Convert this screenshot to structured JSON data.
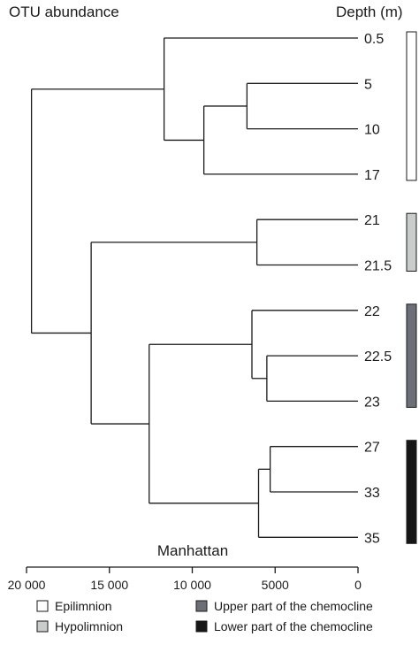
{
  "title": "OTU abundance",
  "depth_header": "Depth (m)",
  "xlabel": "Manhattan",
  "x_axis": {
    "ticks": [
      20000,
      15000,
      10000,
      5000,
      0
    ],
    "tick_labels": [
      "20 000",
      "15 000",
      "10 000",
      "5000",
      "0"
    ],
    "range": [
      20000,
      0
    ],
    "direction": "reversed"
  },
  "leaves": [
    "0.5",
    "5",
    "10",
    "17",
    "21",
    "21.5",
    "22",
    "22.5",
    "23",
    "27",
    "33",
    "35"
  ],
  "tree": {
    "h": 19700,
    "children": [
      {
        "h": 11700,
        "children": [
          {
            "leaf": 0
          },
          {
            "h": 9300,
            "children": [
              {
                "h": 6700,
                "children": [
                  {
                    "leaf": 1
                  },
                  {
                    "leaf": 2
                  }
                ]
              },
              {
                "leaf": 3
              }
            ]
          }
        ]
      },
      {
        "h": 16100,
        "children": [
          {
            "h": 6100,
            "children": [
              {
                "leaf": 4
              },
              {
                "leaf": 5
              }
            ]
          },
          {
            "h": 12600,
            "children": [
              {
                "h": 6400,
                "children": [
                  {
                    "leaf": 6
                  },
                  {
                    "h": 5500,
                    "children": [
                      {
                        "leaf": 7
                      },
                      {
                        "leaf": 8
                      }
                    ]
                  }
                ]
              },
              {
                "h": 6000,
                "children": [
                  {
                    "h": 5300,
                    "children": [
                      {
                        "leaf": 9
                      },
                      {
                        "leaf": 10
                      }
                    ]
                  },
                  {
                    "leaf": 11
                  }
                ]
              }
            ]
          }
        ]
      }
    ]
  },
  "zones": [
    {
      "label": "Epilimnion",
      "color": "#ffffff",
      "from_leaf": 0,
      "to_leaf": 3
    },
    {
      "label": "Hypolimnion",
      "color": "#c8ccca",
      "from_leaf": 4,
      "to_leaf": 5
    },
    {
      "label": "Upper part of the chemocline",
      "color": "#6c7076",
      "from_leaf": 6,
      "to_leaf": 8
    },
    {
      "label": "Lower part of the chemocline",
      "color": "#161616",
      "from_leaf": 9,
      "to_leaf": 11
    }
  ],
  "legend": [
    {
      "label": "Epilimnion",
      "color": "#ffffff"
    },
    {
      "label": "Upper part of the chemocline",
      "color": "#6c7076"
    },
    {
      "label": "Hypolimnion",
      "color": "#c8ccca"
    },
    {
      "label": "Lower part of the chemocline",
      "color": "#161616"
    }
  ]
}
